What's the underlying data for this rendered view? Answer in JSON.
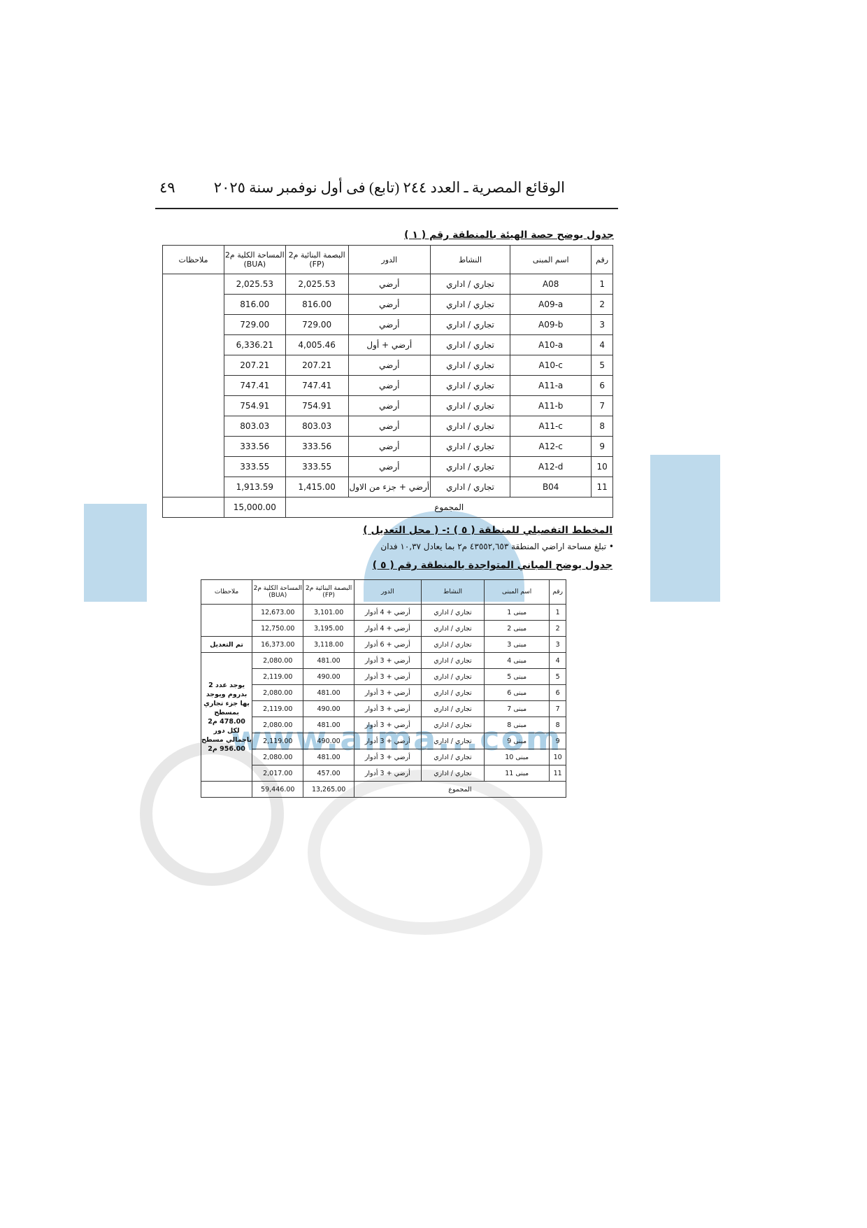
{
  "header": {
    "title": "الوقائع المصرية ـ العدد ٢٤٤ (تابع) فى أول نوفمبر سنة ٢٠٢٥",
    "page_number": "٤٩"
  },
  "table1": {
    "title": "جدول يوضح حصة الهيئة بالمنطقة رقم ( ١ )",
    "columns": [
      "رقم",
      "اسم المبنى",
      "النشاط",
      "الدور",
      "البصمة البنائية م2 (FP)",
      "المساحة الكلية م2 (BUA)",
      "ملاحظات"
    ],
    "rows": [
      [
        "1",
        "A08",
        "تجاري / اداري",
        "أرضي",
        "2,025.53",
        "2,025.53"
      ],
      [
        "2",
        "A09-a",
        "تجاري / اداري",
        "أرضي",
        "816.00",
        "816.00"
      ],
      [
        "3",
        "A09-b",
        "تجاري / اداري",
        "أرضي",
        "729.00",
        "729.00"
      ],
      [
        "4",
        "A10-a",
        "تجاري / اداري",
        "أرضي + أول",
        "4,005.46",
        "6,336.21"
      ],
      [
        "5",
        "A10-c",
        "تجاري / اداري",
        "أرضي",
        "207.21",
        "207.21"
      ],
      [
        "6",
        "A11-a",
        "تجاري / اداري",
        "أرضي",
        "747.41",
        "747.41"
      ],
      [
        "7",
        "A11-b",
        "تجاري / اداري",
        "أرضي",
        "754.91",
        "754.91"
      ],
      [
        "8",
        "A11-c",
        "تجاري / اداري",
        "أرضي",
        "803.03",
        "803.03"
      ],
      [
        "9",
        "A12-c",
        "تجاري / اداري",
        "أرضي",
        "333.56",
        "333.56"
      ],
      [
        "10",
        "A12-d",
        "تجاري / اداري",
        "أرضي",
        "333.55",
        "333.55"
      ],
      [
        "11",
        "B04",
        "تجاري / اداري",
        "أرضي + جزء من الاول",
        "1,415.00",
        "1,913.59"
      ]
    ],
    "total_label": "المجموع",
    "total_bua": "15,000.00"
  },
  "section_heading": "المخطط التفصيلي للمنطقة ( ٥ ) :- ( محل التعديل )",
  "bullet": "تبلغ مساحة اراضي المنطقة ٤٣٥٥٢,٦٥٣ م٢ بما يعادل ١٠,٣٧ فدان",
  "table2": {
    "title": "جدول يوضح المباني المتواجدة بالمنطقة رقم ( ٥ )",
    "columns": [
      "رقم",
      "اسم المبنى",
      "النشاط",
      "الدور",
      "البصمة البنائية م2 (FP)",
      "المساحة الكلية م2 (BUA)",
      "ملاحظات"
    ],
    "rows": [
      [
        "1",
        "مبنى 1",
        "تجاري / اداري",
        "أرضي + 4 أدوار",
        "3,101.00",
        "12,673.00"
      ],
      [
        "2",
        "مبنى 2",
        "تجاري / اداري",
        "أرضي + 4 أدوار",
        "3,195.00",
        "12,750.00"
      ],
      [
        "3",
        "مبنى 3",
        "تجاري / اداري",
        "أرضي + 6 أدوار",
        "3,118.00",
        "16,373.00"
      ],
      [
        "4",
        "مبنى 4",
        "تجاري / اداري",
        "أرضي + 3 أدوار",
        "481.00",
        "2,080.00"
      ],
      [
        "5",
        "مبنى 5",
        "تجاري / اداري",
        "أرضي + 3 أدوار",
        "490.00",
        "2,119.00"
      ],
      [
        "6",
        "مبنى 6",
        "تجاري / اداري",
        "أرضي + 3 أدوار",
        "481.00",
        "2,080.00"
      ],
      [
        "7",
        "مبنى 7",
        "تجاري / اداري",
        "أرضي + 3 أدوار",
        "490.00",
        "2,119.00"
      ],
      [
        "8",
        "مبنى 8",
        "تجاري / اداري",
        "أرضي + 3 أدوار",
        "481.00",
        "2,080.00"
      ],
      [
        "9",
        "مبنى 9",
        "تجاري / اداري",
        "أرضي + 3 أدوار",
        "490.00",
        "2,119.00"
      ],
      [
        "10",
        "مبنى 10",
        "تجاري / اداري",
        "أرضي + 3 أدوار",
        "481.00",
        "2,080.00"
      ],
      [
        "11",
        "مبنى 11",
        "تجاري / اداري",
        "أرضي + 3 أدوار",
        "457.00",
        "2,017.00"
      ]
    ],
    "note_row3": "تم التعديل",
    "note_rows4_11": "يوجد عدد 2 بدروم ويوجد بها جزء تجاري بمسطح 478.00 م2 لكل دور باجمالي مسطح 956.00 م2",
    "total_label": "المجموع",
    "total_fp": "13,265.00",
    "total_bua": "59,446.00"
  },
  "watermark": {
    "text": "www.alma...com",
    "color": "#4696c8"
  }
}
